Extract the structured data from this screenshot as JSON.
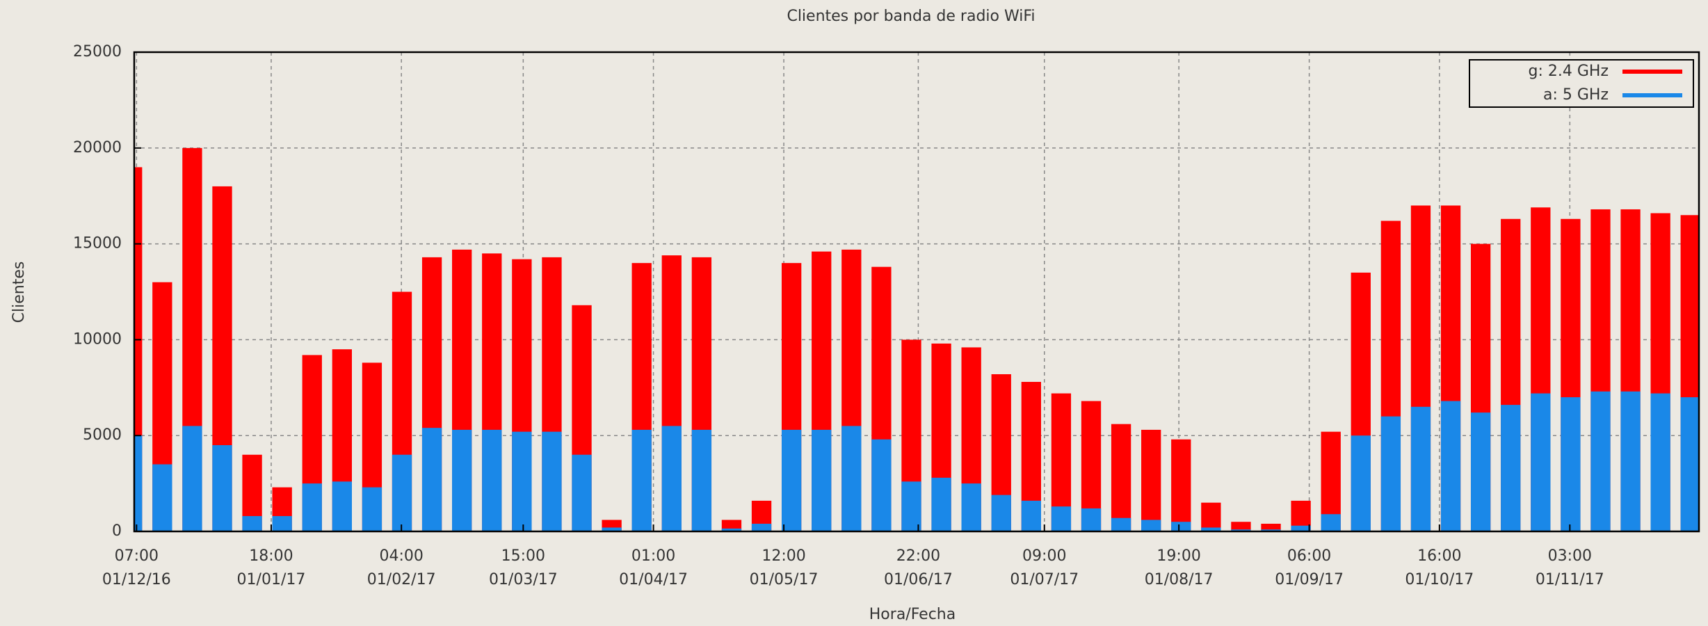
{
  "chart_data": {
    "type": "bar",
    "title": "Clientes por banda de radio WiFi",
    "xlabel": "Hora/Fecha",
    "ylabel": "Clientes",
    "x": [
      "2016-11-28",
      "2016-12-05",
      "2016-12-12",
      "2016-12-19",
      "2016-12-26",
      "2017-01-02",
      "2017-01-09",
      "2017-01-16",
      "2017-01-23",
      "2017-01-30",
      "2017-02-06",
      "2017-02-13",
      "2017-02-20",
      "2017-02-27",
      "2017-03-06",
      "2017-03-13",
      "2017-03-20",
      "2017-03-27",
      "2017-04-03",
      "2017-04-10",
      "2017-04-17",
      "2017-04-24",
      "2017-05-01",
      "2017-05-08",
      "2017-05-15",
      "2017-05-22",
      "2017-05-29",
      "2017-06-05",
      "2017-06-12",
      "2017-06-19",
      "2017-06-26",
      "2017-07-03",
      "2017-07-10",
      "2017-07-17",
      "2017-07-24",
      "2017-07-31",
      "2017-08-07",
      "2017-08-14",
      "2017-08-21",
      "2017-08-28",
      "2017-09-04",
      "2017-09-11",
      "2017-09-18",
      "2017-09-25",
      "2017-10-02",
      "2017-10-09",
      "2017-10-16",
      "2017-10-23",
      "2017-10-30",
      "2017-11-06",
      "2017-11-13",
      "2017-11-20",
      "2017-11-27"
    ],
    "series": [
      {
        "name": "g: 2.4 GHz",
        "color": "#ff0000",
        "values": [
          19000,
          13000,
          20000,
          18000,
          4000,
          2300,
          9200,
          9500,
          8800,
          12500,
          14300,
          14700,
          14500,
          14200,
          14300,
          11800,
          600,
          14000,
          14400,
          14300,
          600,
          1600,
          14000,
          14600,
          14700,
          13800,
          10000,
          9800,
          9600,
          8200,
          7800,
          7200,
          6800,
          5600,
          5300,
          4800,
          1500,
          500,
          400,
          1600,
          5200,
          13500,
          16200,
          17000,
          17000,
          15000,
          16300,
          16900,
          16300,
          16800,
          16800,
          16600,
          16500
        ]
      },
      {
        "name": "a: 5 GHz",
        "color": "#1a88e8",
        "values": [
          5000,
          3500,
          5500,
          4500,
          800,
          800,
          2500,
          2600,
          2300,
          4000,
          5400,
          5300,
          5300,
          5200,
          5200,
          4000,
          200,
          5300,
          5500,
          5300,
          150,
          400,
          5300,
          5300,
          5500,
          4800,
          2600,
          2800,
          2500,
          1900,
          1600,
          1300,
          1200,
          700,
          600,
          500,
          200,
          100,
          100,
          300,
          900,
          5000,
          6000,
          6500,
          6800,
          6200,
          6600,
          7200,
          7000,
          7300,
          7300,
          7200,
          7000
        ]
      }
    ],
    "xlim": [
      "2016-11-30T18:00",
      "2017-12-01T07:00"
    ],
    "xticks": [
      {
        "value": "2016-12-01T07:00",
        "label": [
          "07:00",
          "01/12/16"
        ]
      },
      {
        "value": "2017-01-01T18:00",
        "label": [
          "18:00",
          "01/01/17"
        ]
      },
      {
        "value": "2017-02-01T04:00",
        "label": [
          "04:00",
          "01/02/17"
        ]
      },
      {
        "value": "2017-03-01T15:00",
        "label": [
          "15:00",
          "01/03/17"
        ]
      },
      {
        "value": "2017-04-01T01:00",
        "label": [
          "01:00",
          "01/04/17"
        ]
      },
      {
        "value": "2017-05-01T12:00",
        "label": [
          "12:00",
          "01/05/17"
        ]
      },
      {
        "value": "2017-06-01T22:00",
        "label": [
          "22:00",
          "01/06/17"
        ]
      },
      {
        "value": "2017-07-01T09:00",
        "label": [
          "09:00",
          "01/07/17"
        ]
      },
      {
        "value": "2017-08-01T19:00",
        "label": [
          "19:00",
          "01/08/17"
        ]
      },
      {
        "value": "2017-09-01T06:00",
        "label": [
          "06:00",
          "01/09/17"
        ]
      },
      {
        "value": "2017-10-01T16:00",
        "label": [
          "16:00",
          "01/10/17"
        ]
      },
      {
        "value": "2017-11-01T03:00",
        "label": [
          "03:00",
          "01/11/17"
        ]
      }
    ],
    "ylim": [
      0,
      25000
    ],
    "yticks": [
      0,
      5000,
      10000,
      15000,
      20000,
      25000
    ],
    "grid": true,
    "legend": "upper right"
  }
}
